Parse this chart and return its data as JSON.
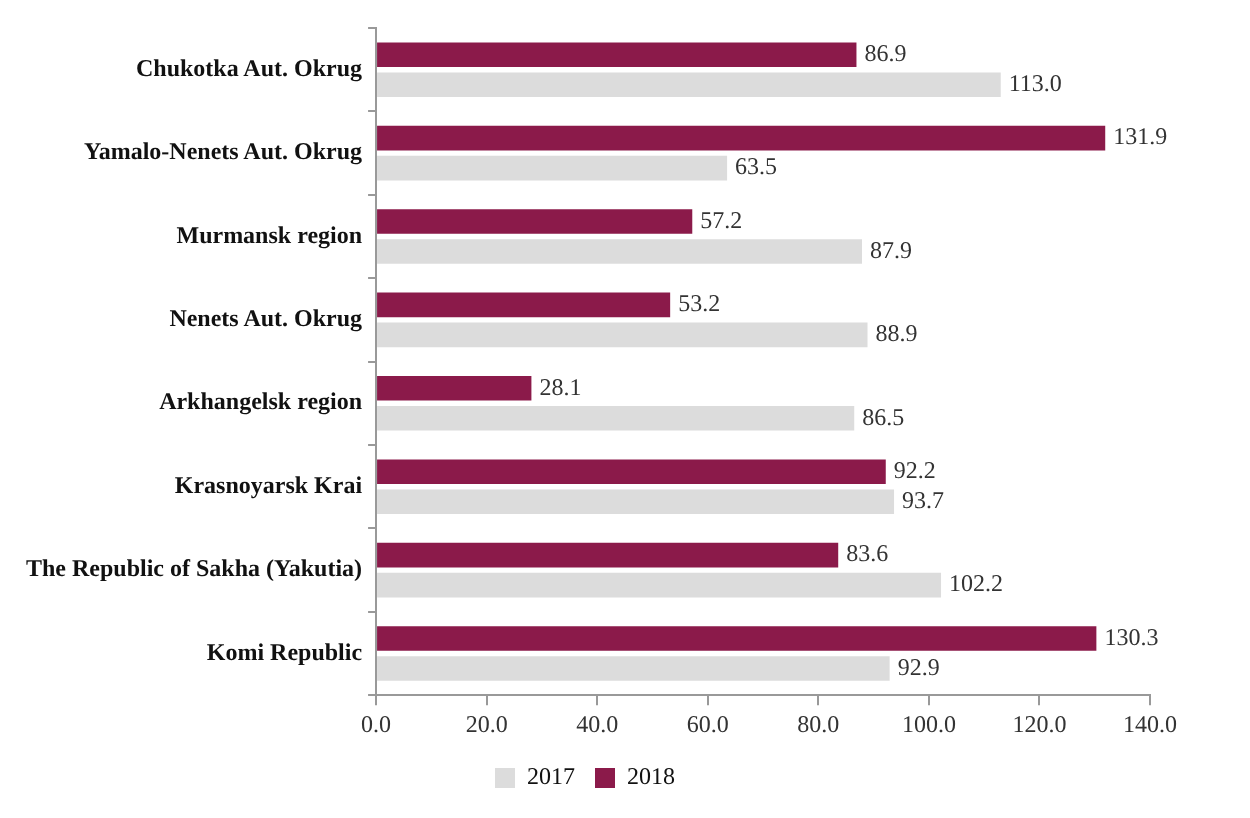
{
  "chart_data": {
    "type": "bar",
    "orientation": "horizontal",
    "categories": [
      "Chukotka Aut. Okrug",
      "Yamalo-Nenets Aut. Okrug",
      "Murmansk region",
      "Nenets Aut. Okrug",
      "Arkhangelsk region",
      "Krasnoyarsk Krai",
      "The Republic of Sakha (Yakutia)",
      "Komi Republic"
    ],
    "series": [
      {
        "name": "2017",
        "color": "#dcdcdc",
        "values": [
          113.0,
          63.5,
          87.9,
          88.9,
          86.5,
          93.7,
          102.2,
          92.9
        ],
        "value_labels": [
          "113.0",
          "63.5",
          "87.9",
          "88.9",
          "86.5",
          "93.7",
          "102.2",
          "92.9"
        ]
      },
      {
        "name": "2018",
        "color": "#8b1a4a",
        "values": [
          86.9,
          131.9,
          57.2,
          53.2,
          28.1,
          92.2,
          83.6,
          130.3
        ],
        "value_labels": [
          "86.9",
          "131.9",
          "57.2",
          "53.2",
          "28.1",
          "92.2",
          "83.6",
          "130.3"
        ]
      }
    ],
    "xlim": [
      0,
      140
    ],
    "xticks": [
      {
        "value": 0,
        "label": "0.0"
      },
      {
        "value": 20,
        "label": "20.0"
      },
      {
        "value": 40,
        "label": "40.0"
      },
      {
        "value": 60,
        "label": "60.0"
      },
      {
        "value": 80,
        "label": "80.0"
      },
      {
        "value": 100,
        "label": "100.0"
      },
      {
        "value": 120,
        "label": "120.0"
      },
      {
        "value": 140,
        "label": "140.0"
      }
    ],
    "grid": false,
    "legend": "bottom"
  }
}
